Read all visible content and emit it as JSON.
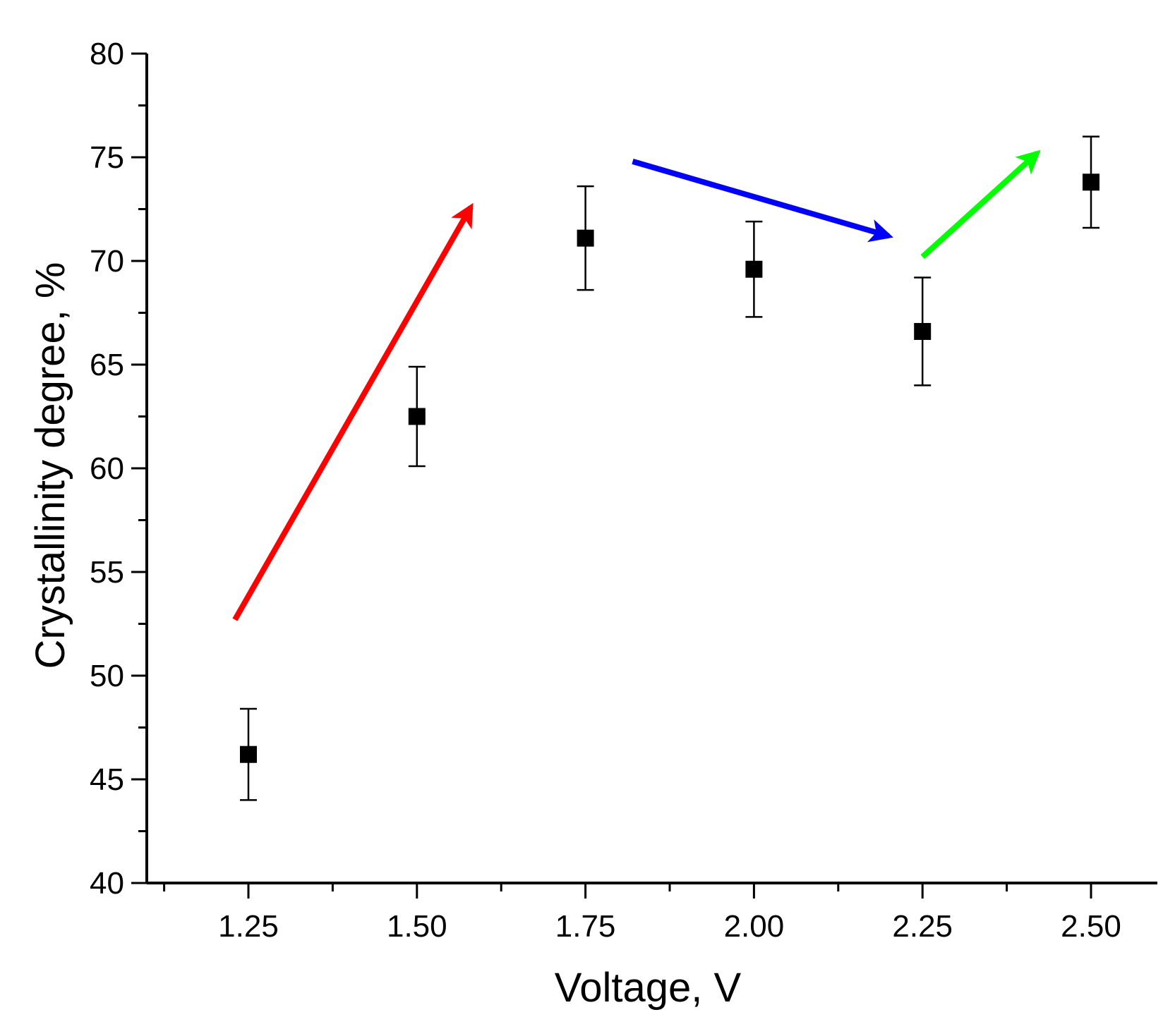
{
  "chart_data": {
    "type": "scatter",
    "title": "",
    "xlabel": "Voltage, V",
    "ylabel": "Crystallinity degree, %",
    "xlim": [
      1.1,
      2.6
    ],
    "ylim": [
      40,
      80
    ],
    "x_major_ticks": [
      1.25,
      1.5,
      1.75,
      2.0,
      2.25,
      2.5
    ],
    "x_tick_labels": [
      "1.25",
      "1.50",
      "1.75",
      "2.00",
      "2.25",
      "2.50"
    ],
    "x_minor_ticks": [
      1.125,
      1.375,
      1.625,
      1.875,
      2.125,
      2.375
    ],
    "y_major_ticks": [
      40,
      45,
      50,
      55,
      60,
      65,
      70,
      75,
      80
    ],
    "y_tick_labels": [
      "40",
      "45",
      "50",
      "55",
      "60",
      "65",
      "70",
      "75",
      "80"
    ],
    "y_minor_ticks": [
      42.5,
      47.5,
      52.5,
      57.5,
      62.5,
      67.5,
      72.5,
      77.5
    ],
    "grid": false,
    "series": [
      {
        "name": "Crystallinity degree",
        "marker": "square",
        "color": "#000000",
        "x": [
          1.25,
          1.5,
          1.75,
          2.0,
          2.25,
          2.5
        ],
        "y": [
          46.2,
          62.5,
          71.1,
          69.6,
          66.6,
          73.8
        ],
        "error": [
          2.2,
          2.4,
          2.5,
          2.3,
          2.6,
          2.2
        ]
      }
    ],
    "annotations": [
      {
        "type": "arrow",
        "color": "#ff0000",
        "from": [
          1.23,
          52.7
        ],
        "to": [
          1.58,
          72.6
        ]
      },
      {
        "type": "arrow",
        "color": "#0000ff",
        "from": [
          1.82,
          74.8
        ],
        "to": [
          2.2,
          71.2
        ]
      },
      {
        "type": "arrow",
        "color": "#00ff00",
        "from": [
          2.25,
          70.2
        ],
        "to": [
          2.42,
          75.2
        ]
      }
    ]
  }
}
